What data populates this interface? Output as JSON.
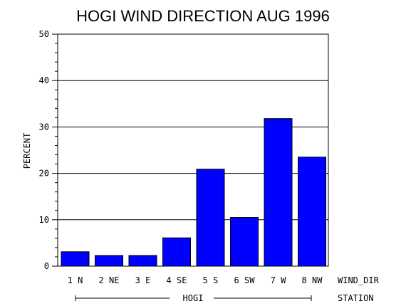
{
  "chart_data": {
    "type": "bar",
    "title": "HOGI WIND DIRECTION AUG 1996",
    "ylabel": "PERCENT",
    "xlabel": "WIND_DIR",
    "group_axis_label": "STATION",
    "group_label": "HOGI",
    "categories": [
      "1 N",
      "2 NE",
      "3 E",
      "4 SE",
      "5 S",
      "6 SW",
      "7 W",
      "8 NW"
    ],
    "values": [
      3.1,
      2.3,
      2.3,
      6.1,
      20.9,
      10.5,
      31.8,
      23.5
    ],
    "ylim": [
      0,
      50
    ],
    "yticks": [
      "0",
      "10",
      "20",
      "30",
      "40",
      "50"
    ],
    "grid": true,
    "bar_color": "#0000ff",
    "legend": "none"
  }
}
